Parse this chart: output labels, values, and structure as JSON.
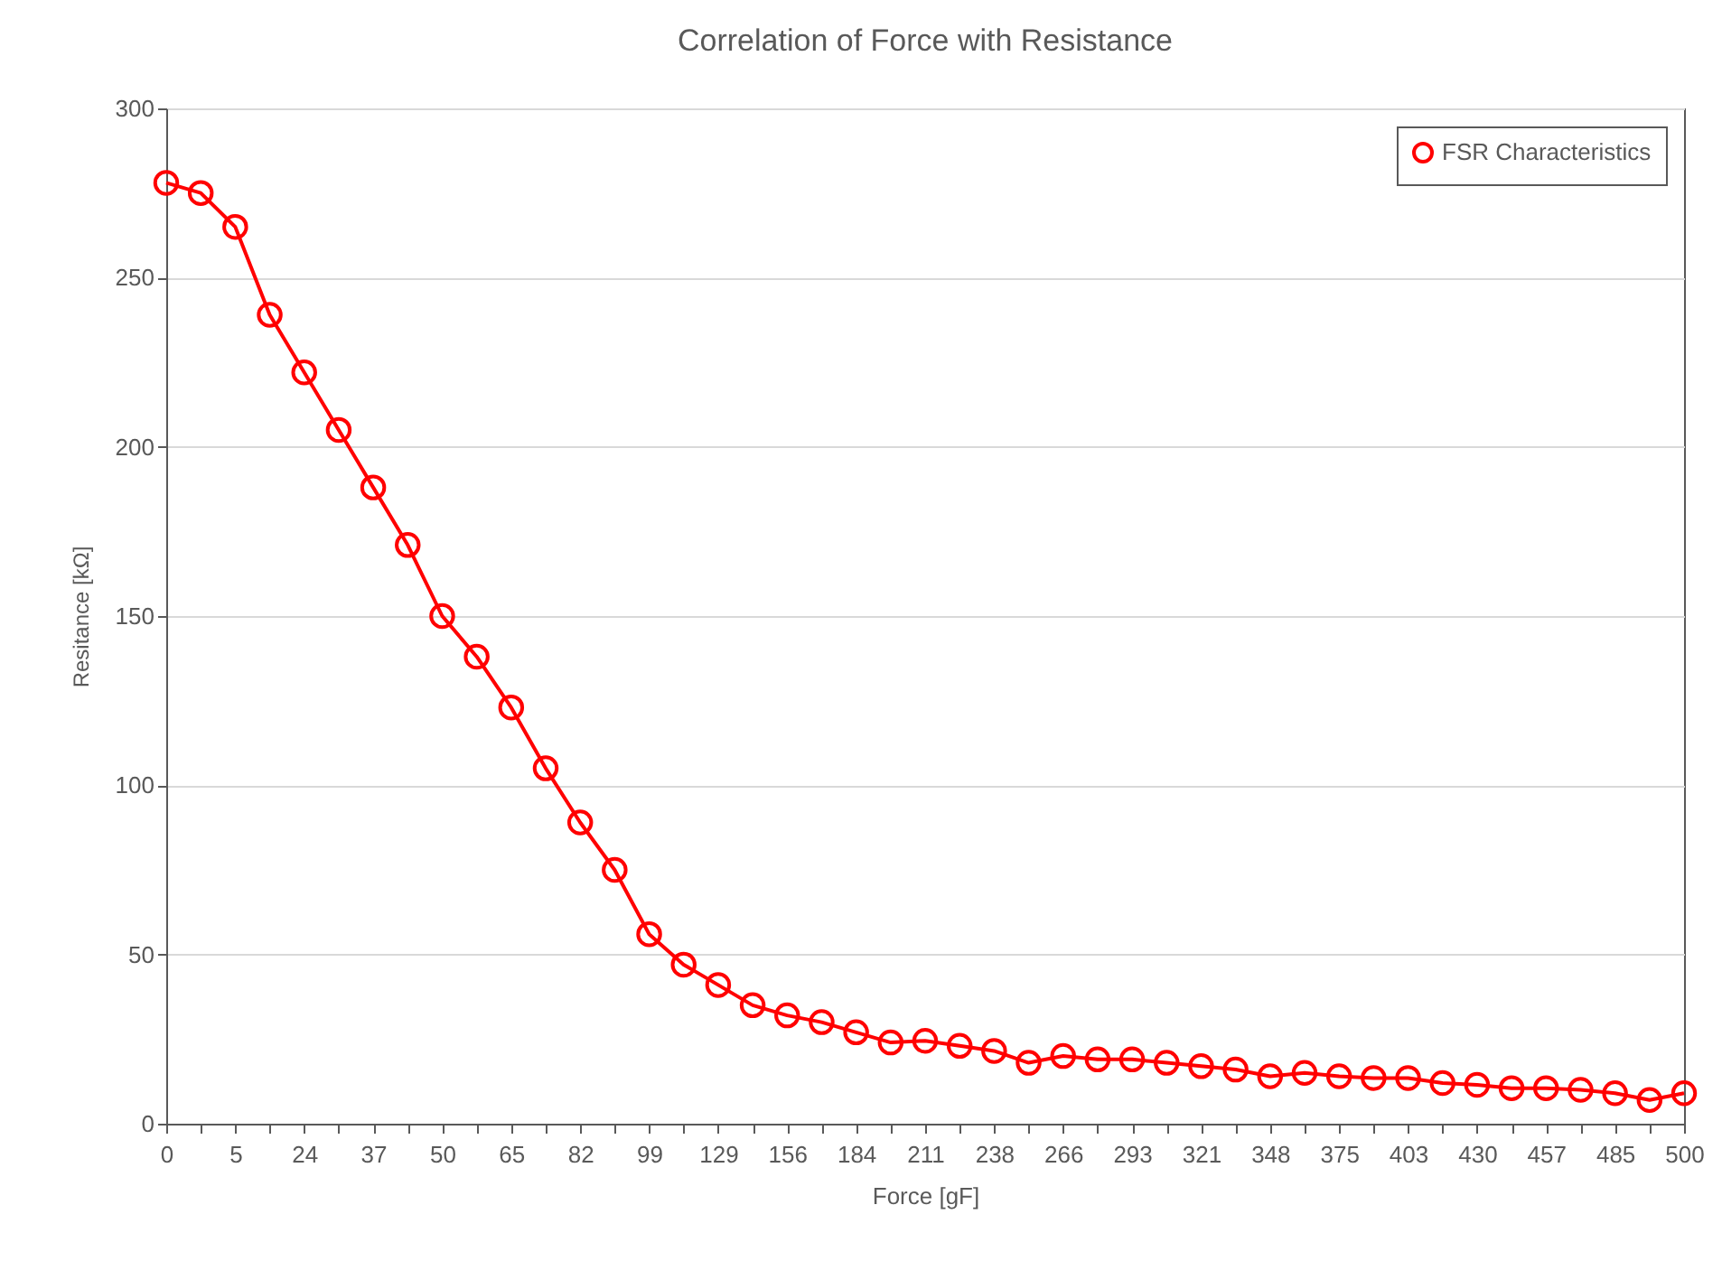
{
  "chart_data": {
    "type": "line",
    "title": "Correlation of Force with Resistance",
    "xlabel": "Force [gF]",
    "ylabel": "Resitance [kΩ]",
    "categories": [
      "0",
      null,
      "5",
      null,
      "24",
      null,
      "37",
      null,
      "50",
      null,
      "65",
      null,
      "82",
      null,
      "99",
      null,
      "129",
      null,
      "156",
      null,
      "184",
      null,
      "211",
      null,
      "238",
      null,
      "266",
      null,
      "293",
      null,
      "321",
      null,
      "348",
      null,
      "375",
      null,
      "403",
      null,
      "430",
      null,
      "457",
      null,
      "485",
      null,
      "500"
    ],
    "series": [
      {
        "name": "FSR Characteristics",
        "color": "#ff0000",
        "values": [
          278,
          275,
          265,
          239,
          222,
          205,
          188,
          171,
          150,
          138,
          123,
          105,
          89,
          75,
          56,
          47,
          41,
          35,
          32,
          30,
          27,
          24,
          24.5,
          23,
          21.5,
          18,
          20,
          19,
          19,
          18,
          17,
          16,
          14,
          15,
          14,
          13.5,
          13.5,
          12,
          11.5,
          10.5,
          10.5,
          10,
          9,
          7,
          9
        ]
      }
    ],
    "ylim": [
      0,
      300
    ],
    "yticks": [
      0,
      50,
      100,
      150,
      200,
      250,
      300
    ],
    "grid": "y",
    "legend": "top right",
    "marker": "circle",
    "line_style": "solid"
  }
}
